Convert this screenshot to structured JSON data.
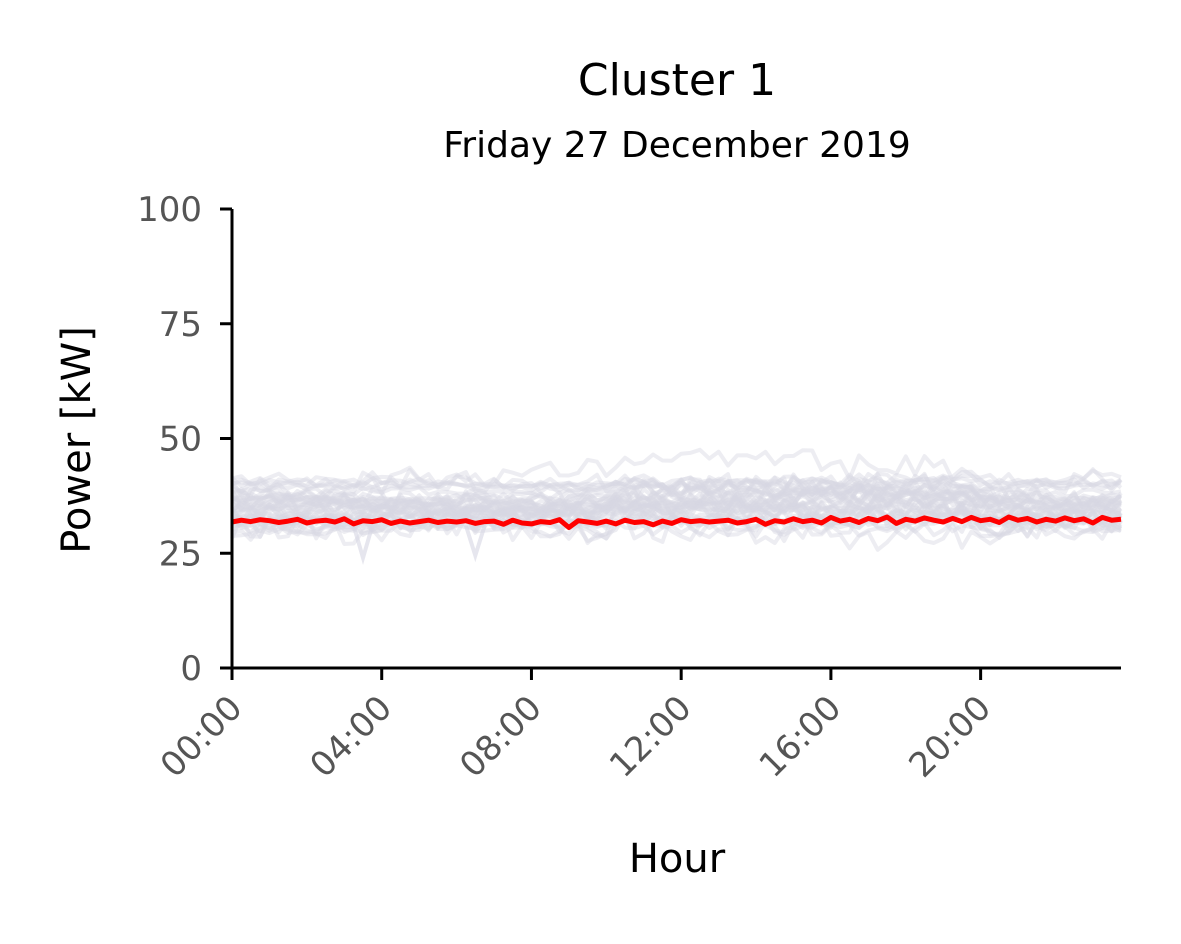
{
  "chart_data": {
    "type": "line",
    "title": "Cluster 1",
    "subtitle": "Friday 27 December 2019",
    "xlabel": "Hour",
    "ylabel": "Power [kW]",
    "ylim": [
      0,
      100
    ],
    "xlim": [
      "00:00",
      "23:45"
    ],
    "y_ticks": [
      0,
      25,
      50,
      75,
      100
    ],
    "x_ticks": [
      "00:00",
      "04:00",
      "08:00",
      "12:00",
      "16:00",
      "20:00"
    ],
    "grid": false,
    "legend": "none",
    "background_series": {
      "color": "#d6d6e3",
      "description_count": 40,
      "typical_range": [
        29,
        45
      ],
      "outlier_min": 24,
      "outlier_max": 50
    },
    "series": [
      {
        "color": "#ff0000",
        "values": [
          31.8,
          32.2,
          31.9,
          32.3,
          32.1,
          31.7,
          32.0,
          32.4,
          31.6,
          32.0,
          32.2,
          31.8,
          32.5,
          31.4,
          32.1,
          31.9,
          32.3,
          31.5,
          32.0,
          31.6,
          31.9,
          32.2,
          31.7,
          32.0,
          31.8,
          32.1,
          31.5,
          31.9,
          32.0,
          31.3,
          32.2,
          31.6,
          31.4,
          31.9,
          31.7,
          32.3,
          30.6,
          32.1,
          31.8,
          31.5,
          32.0,
          31.4,
          32.2,
          31.7,
          31.9,
          31.2,
          32.0,
          31.5,
          32.3,
          31.9,
          32.1,
          31.8,
          32.0,
          32.2,
          31.6,
          31.9,
          32.4,
          31.3,
          32.1,
          31.8,
          32.5,
          31.9,
          32.2,
          31.6,
          32.8,
          32.0,
          32.4,
          31.7,
          32.6,
          32.1,
          32.9,
          31.5,
          32.4,
          32.0,
          32.7,
          32.2,
          31.8,
          32.6,
          31.9,
          32.8,
          32.1,
          32.4,
          31.7,
          32.9,
          32.2,
          32.6,
          31.8,
          32.4,
          32.0,
          32.7,
          32.1,
          32.5,
          31.6,
          32.8,
          32.2,
          32.4
        ]
      }
    ]
  }
}
